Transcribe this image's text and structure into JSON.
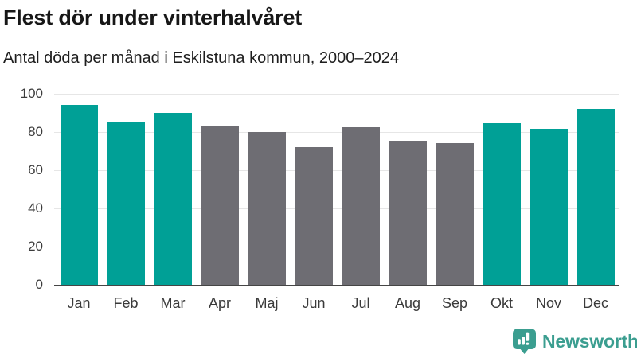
{
  "header": {
    "title": "Flest dör under vinterhalvåret",
    "subtitle": "Antal döda per månad i Eskilstuna kommun, 2000–2024"
  },
  "chart_data": {
    "type": "bar",
    "title": "Flest dör under vinterhalvåret",
    "subtitle": "Antal döda per månad i Eskilstuna kommun, 2000–2024",
    "categories": [
      "Jan",
      "Feb",
      "Mar",
      "Apr",
      "Maj",
      "Jun",
      "Jul",
      "Aug",
      "Sep",
      "Okt",
      "Nov",
      "Dec"
    ],
    "values": [
      94,
      85.5,
      90,
      83.5,
      80,
      72,
      82.5,
      75.5,
      74,
      85,
      81.5,
      92
    ],
    "bar_color_keys": [
      "winter",
      "winter",
      "winter",
      "summer",
      "summer",
      "summer",
      "summer",
      "summer",
      "summer",
      "winter",
      "winter",
      "winter"
    ],
    "bar_palette": {
      "winter": "#00A096",
      "summer": "#6E6D73"
    },
    "xlabel": "",
    "ylabel": "",
    "ylim": [
      0,
      100
    ],
    "yticks": [
      0,
      20,
      40,
      60,
      80,
      100
    ],
    "grid": true,
    "legend": "none"
  },
  "footer": {
    "brand": {
      "name": "Newsworthy",
      "color": "#3B9E90",
      "icon": "bar-chart-speech-bubble-icon"
    }
  },
  "style": {
    "background": "#FFFFFF",
    "gridline_color": "#E6E6E6",
    "baseline_color": "#454545",
    "title_color": "#171717",
    "axis_label_color": "#3C3C3C"
  }
}
